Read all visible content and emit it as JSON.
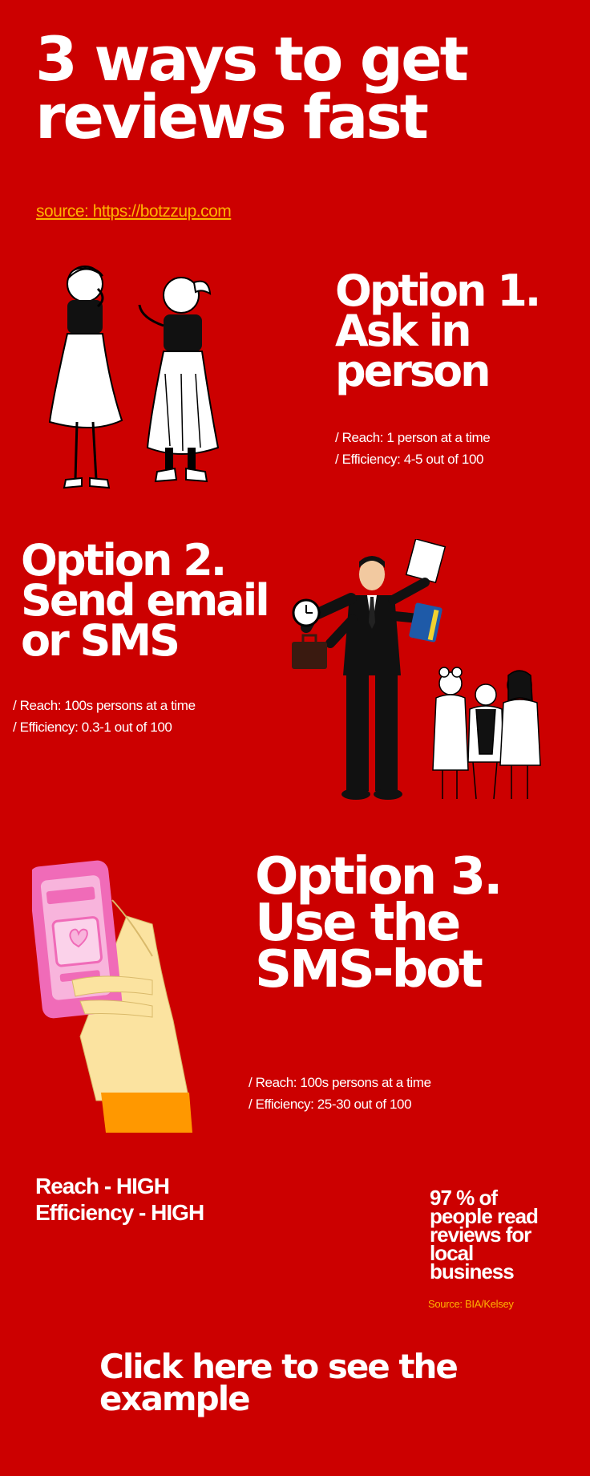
{
  "header": {
    "title_line1": "3 ways to get",
    "title_line2": "reviews fast",
    "source_link": "source: https://botzzup.com"
  },
  "options": [
    {
      "heading_lines": [
        "Option 1.",
        "Ask in",
        "person"
      ],
      "reach": "/ Reach:  1 person at a time",
      "efficiency": "/ Efficiency:  4-5 out of 100"
    },
    {
      "heading_lines": [
        "Option 2.",
        "Send email",
        "or SMS"
      ],
      "reach": "/ Reach:  100s persons at a time",
      "efficiency": "/ Efficiency:  0.3-1 out of 100"
    },
    {
      "heading_lines": [
        "Option 3.",
        "Use the",
        "SMS-bot"
      ],
      "reach": "/ Reach:  100s persons at a time",
      "efficiency": "/ Efficiency:  25-30 out of 100"
    }
  ],
  "summary": {
    "reach": "Reach - HIGH",
    "efficiency": "Efficiency - HIGH"
  },
  "fact": {
    "lines": [
      "97 % of",
      "people read",
      "reviews for",
      "local",
      "business"
    ],
    "source": "Source: BIA/Kelsey"
  },
  "cta": {
    "line1": "Click here to see the",
    "line2": "example"
  },
  "icons": {
    "illustration1": "two-women-talking-illustration",
    "illustration2": "businessman-multitasking-illustration",
    "illustration3": "group-of-women-illustration",
    "illustration4": "hand-holding-phone-illustration"
  },
  "colors": {
    "background": "#cc0000",
    "text": "#ffffff",
    "accent": "#ffb300",
    "phone": "#f06bb8",
    "sleeve": "#ff9800",
    "skin": "#fbe3a0"
  }
}
